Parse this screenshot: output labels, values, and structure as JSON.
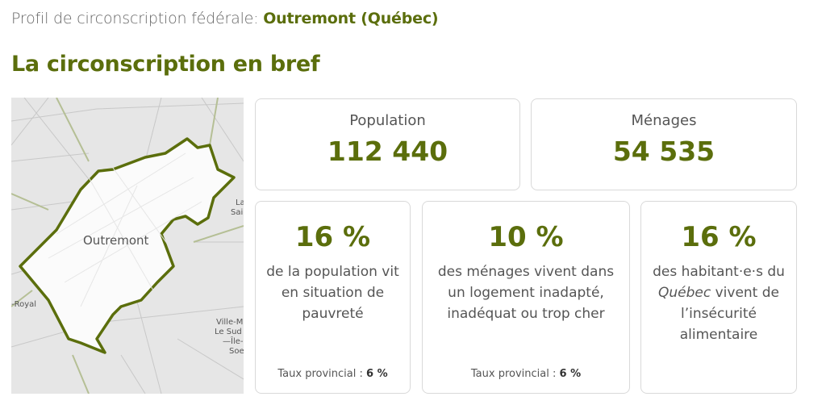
{
  "header": {
    "prefix": "Profil de circonscription fédérale:",
    "riding": "Outremont (Québec)"
  },
  "section_title": "La circonscription en bref",
  "map": {
    "riding_label": "Outremont",
    "edge_labels": [
      "-Royal",
      "Ville-M",
      "Le Sud",
      "—Île-",
      "Soe",
      "La",
      "Sai"
    ]
  },
  "summary": [
    {
      "label": "Population",
      "value": "112 440"
    },
    {
      "label": "Ménages",
      "value": "54 535"
    }
  ],
  "stats": [
    {
      "value": "16 %",
      "description": [
        "de la population vit en situation de pauvreté"
      ],
      "provincial_label": "Taux provincial :",
      "provincial_value": "6 %"
    },
    {
      "value": "10 %",
      "description": [
        "des ménages vivent dans un logement inadapté, inadéquat ou trop cher"
      ],
      "provincial_label": "Taux provincial :",
      "provincial_value": "6 %"
    },
    {
      "value": "16 %",
      "description": [
        "des habitant·e·s du",
        "Québec",
        "vivent de l’insécurité alimentaire"
      ]
    }
  ]
}
